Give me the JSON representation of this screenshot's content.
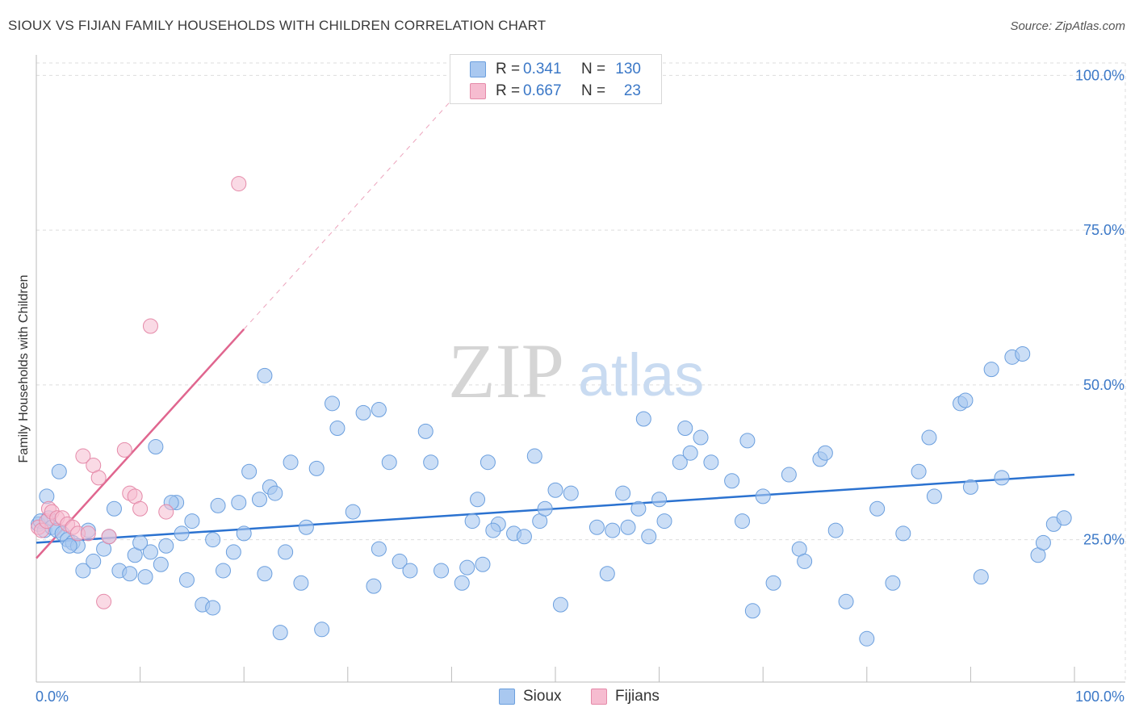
{
  "header": {
    "title": "SIOUX VS FIJIAN FAMILY HOUSEHOLDS WITH CHILDREN CORRELATION CHART",
    "source": "Source: ZipAtlas.com"
  },
  "watermark": {
    "zip": "ZIP",
    "atlas": "atlas"
  },
  "legend": {
    "sioux": {
      "r_label": "R =",
      "r_value": "0.341",
      "n_label": "N =",
      "n_value": "130"
    },
    "fijians": {
      "r_label": "R =",
      "r_value": "0.667",
      "n_label": "N =",
      "n_value": "23"
    }
  },
  "bottom_legend": {
    "sioux": "Sioux",
    "fijians": "Fijians"
  },
  "colors": {
    "sioux_fill": "#a9c8f0",
    "sioux_stroke": "#6b9fde",
    "sioux_line": "#2b72d0",
    "fijian_fill": "#f6bcd0",
    "fijian_stroke": "#e58aa9",
    "fijian_line": "#e0668f",
    "axis_text": "#3b78c7",
    "grid": "#dddddd"
  },
  "chart_data": {
    "type": "scatter",
    "title": "SIOUX VS FIJIAN FAMILY HOUSEHOLDS WITH CHILDREN CORRELATION CHART",
    "xlabel": "",
    "ylabel": "Family Households with Children",
    "xlim": [
      0,
      100
    ],
    "ylim": [
      2,
      102
    ],
    "x_tick_labels": [
      "0.0%",
      "100.0%"
    ],
    "y_ticks": [
      25,
      50,
      75,
      100
    ],
    "y_tick_labels": [
      "25.0%",
      "50.0%",
      "75.0%",
      "100.0%"
    ],
    "grid": true,
    "series": [
      {
        "name": "Sioux",
        "x": [
          0.2,
          0.4,
          0.8,
          1.2,
          1.5,
          2.0,
          2.5,
          3.0,
          3.5,
          4.0,
          4.5,
          5.5,
          6.5,
          7.0,
          8.0,
          9.0,
          9.5,
          10.5,
          11.0,
          11.5,
          12.0,
          12.5,
          13.5,
          14.0,
          14.5,
          15.0,
          16.0,
          17.0,
          17.5,
          18.0,
          19.0,
          19.5,
          20.0,
          20.5,
          21.5,
          22.0,
          22.5,
          23.0,
          23.5,
          24.0,
          24.5,
          25.5,
          26.0,
          27.0,
          27.5,
          28.5,
          29.0,
          30.5,
          31.5,
          32.5,
          33.0,
          34.0,
          35.0,
          36.0,
          37.5,
          38.0,
          39.0,
          41.0,
          41.5,
          42.0,
          42.5,
          43.0,
          43.5,
          44.5,
          46.0,
          47.0,
          48.0,
          48.5,
          49.0,
          50.0,
          50.5,
          51.5,
          54.0,
          55.0,
          55.5,
          57.0,
          56.5,
          58.5,
          59.0,
          60.0,
          60.5,
          62.0,
          62.5,
          63.0,
          64.0,
          65.0,
          67.0,
          68.0,
          68.5,
          69.0,
          70.0,
          71.0,
          72.5,
          73.5,
          74.0,
          75.5,
          76.0,
          77.0,
          78.0,
          80.0,
          81.0,
          82.5,
          83.5,
          85.0,
          86.0,
          86.5,
          89.0,
          89.5,
          90.0,
          91.0,
          92.0,
          93.0,
          94.0,
          95.0,
          96.5,
          97.0,
          98.0,
          99.0,
          1.0,
          2.2,
          3.2,
          5.0,
          7.5,
          10.0,
          13.0,
          17.0,
          22.0,
          33.0,
          44.0,
          58.0
        ],
        "y": [
          27.5,
          28.0,
          26.5,
          28.5,
          27.0,
          26.5,
          26.0,
          25.0,
          24.5,
          24.0,
          20.0,
          21.5,
          23.5,
          25.5,
          20.0,
          19.5,
          22.5,
          19.0,
          23.0,
          40.0,
          21.0,
          24.0,
          31.0,
          26.0,
          18.5,
          28.0,
          14.5,
          14.0,
          30.5,
          20.0,
          23.0,
          31.0,
          26.0,
          36.0,
          31.5,
          19.5,
          33.5,
          32.5,
          10.0,
          23.0,
          37.5,
          18.0,
          27.0,
          36.5,
          10.5,
          47.0,
          43.0,
          29.5,
          45.5,
          17.5,
          23.5,
          37.5,
          21.5,
          20.0,
          42.5,
          37.5,
          20.0,
          18.0,
          20.5,
          28.0,
          31.5,
          21.0,
          37.5,
          27.5,
          26.0,
          25.5,
          38.5,
          28.0,
          30.0,
          33.0,
          14.5,
          32.5,
          27.0,
          19.5,
          26.5,
          27.0,
          32.5,
          44.5,
          25.5,
          31.5,
          28.0,
          37.5,
          43.0,
          39.0,
          41.5,
          37.5,
          34.5,
          28.0,
          41.0,
          13.5,
          32.0,
          18.0,
          35.5,
          23.5,
          21.5,
          38.0,
          39.0,
          26.5,
          15.0,
          9.0,
          30.0,
          18.0,
          26.0,
          36.0,
          41.5,
          32.0,
          47.0,
          47.5,
          33.5,
          19.0,
          52.5,
          35.0,
          54.5,
          55.0,
          22.5,
          24.5,
          27.5,
          28.5,
          32.0,
          36.0,
          24.0,
          26.5,
          30.0,
          24.5,
          31.0,
          25.0,
          51.5,
          46.0,
          26.5,
          30.0
        ]
      },
      {
        "name": "Fijians",
        "x": [
          0.2,
          0.5,
          1.0,
          1.2,
          1.5,
          2.0,
          2.5,
          3.0,
          3.5,
          4.0,
          4.5,
          5.0,
          5.5,
          6.0,
          6.5,
          7.0,
          8.5,
          9.0,
          9.5,
          10.0,
          11.0,
          12.5,
          19.5
        ],
        "y": [
          27.0,
          26.5,
          28.0,
          30.0,
          29.5,
          28.5,
          28.5,
          27.5,
          27.0,
          26.0,
          38.5,
          26.0,
          37.0,
          35.0,
          15.0,
          25.5,
          39.5,
          32.5,
          32.0,
          30.0,
          59.5,
          29.5,
          82.5
        ]
      }
    ],
    "trend_lines": [
      {
        "name": "Sioux",
        "x": [
          0,
          100
        ],
        "y": [
          24.5,
          35.5
        ]
      },
      {
        "name": "Fijians",
        "x": [
          0,
          20
        ],
        "y": [
          22.0,
          59.0
        ]
      },
      {
        "name": "Fijians-extrapolated",
        "x": [
          20,
          40
        ],
        "y": [
          59.0,
          96.0
        ],
        "style": "dashed"
      }
    ]
  }
}
